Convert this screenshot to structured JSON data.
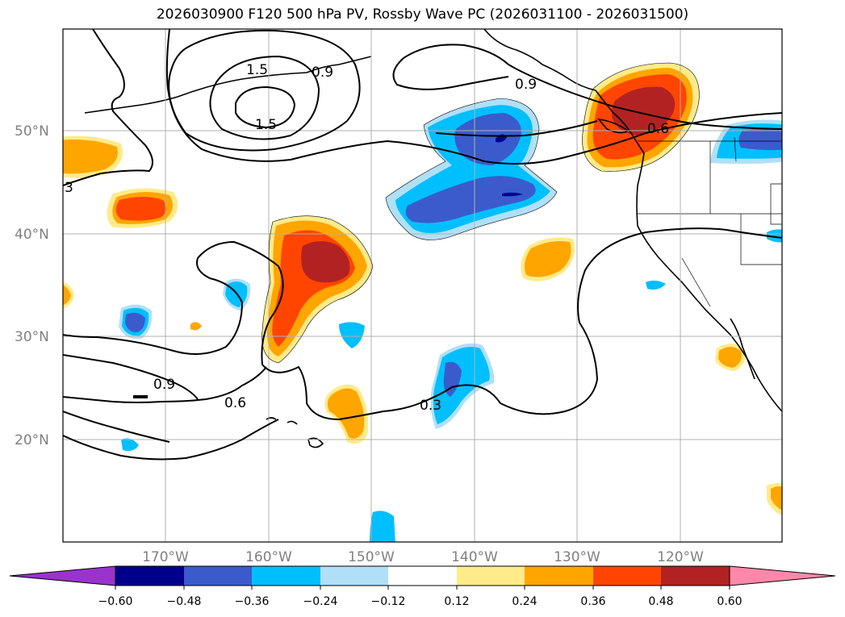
{
  "title": "2026030900 F120 500 hPa PV, Rossby Wave PC (2026031100 - 2026031500)",
  "lat_labels": [
    "50°N",
    "40°N",
    "30°N",
    "20°N"
  ],
  "lon_labels": [
    "170°W",
    "160°W",
    "150°W",
    "140°W",
    "130°W",
    "120°W"
  ],
  "contour_labels": [
    "1.5",
    "1.5",
    "0.9",
    "0.9",
    "0.9",
    "0.6",
    "0.6",
    "0.3",
    "3"
  ],
  "colorbar": {
    "colors": [
      "#9933cc",
      "#00008b",
      "#3b5bcc",
      "#00bfff",
      "#b0e0f8",
      "#ffffff",
      "#ffeb8a",
      "#ffa500",
      "#ff4500",
      "#b22222",
      "#ff88aa"
    ],
    "tick_labels": [
      "−0.60",
      "−0.48",
      "−0.36",
      "−0.24",
      "−0.12",
      "0.12",
      "0.24",
      "0.36",
      "0.48",
      "0.60"
    ]
  },
  "map_extent": {
    "lon_min": -180,
    "lon_max": -110,
    "lat_min": 10,
    "lat_max": 60
  },
  "palette": {
    "dark_red": "#b22222",
    "red_orange": "#ff4500",
    "orange": "#ffa500",
    "yellow": "#ffeb8a",
    "light_blue": "#b0e0f8",
    "deep_sky": "#00bfff",
    "royal_blue": "#3b5bcc",
    "navy": "#00008b"
  }
}
